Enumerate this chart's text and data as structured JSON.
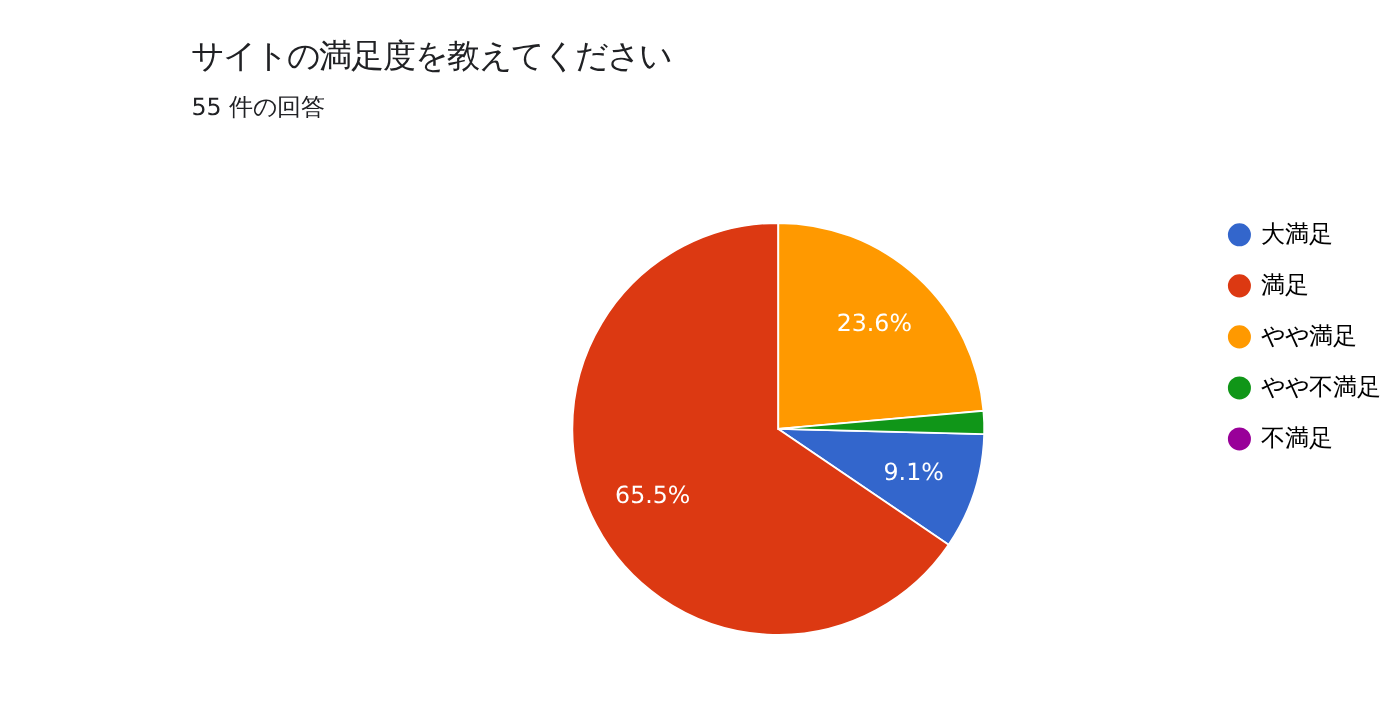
{
  "chart_data": {
    "type": "pie",
    "title": "サイトの満足度を教えてください",
    "subtitle": "55 件の回答",
    "categories": [
      "大満足",
      "満足",
      "やや満足",
      "やや不満足",
      "不満足"
    ],
    "values": [
      9.1,
      65.5,
      23.6,
      1.8,
      0
    ],
    "colors": [
      "#3366cc",
      "#dc3912",
      "#ff9900",
      "#109618",
      "#990099"
    ],
    "value_labels": [
      "9.1%",
      "65.5%",
      "23.6%",
      null,
      null
    ],
    "legend": "right"
  }
}
